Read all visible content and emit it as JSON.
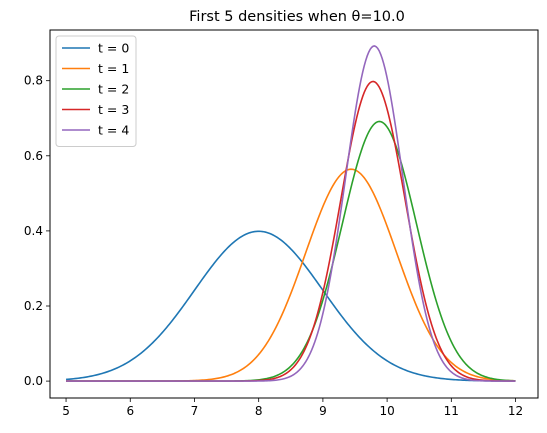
{
  "chart_data": {
    "type": "line",
    "title": "First 5 densities when θ=10.0",
    "xlabel": "",
    "ylabel": "",
    "xlim": [
      4.75,
      12.35
    ],
    "ylim": [
      -0.045,
      0.935
    ],
    "xticks": [
      5,
      6,
      7,
      8,
      9,
      10,
      11,
      12
    ],
    "xtick_labels": [
      "5",
      "6",
      "7",
      "8",
      "9",
      "10",
      "11",
      "12"
    ],
    "yticks": [
      0.0,
      0.2,
      0.4,
      0.6,
      0.8
    ],
    "ytick_labels": [
      "0.0",
      "0.2",
      "0.4",
      "0.6",
      "0.8"
    ],
    "grid": false,
    "legend_position": "top-left",
    "x_domain": [
      5,
      12
    ],
    "series": [
      {
        "name": "t = 0",
        "color": "#1f77b4",
        "distribution": "normal",
        "mean": 8.0,
        "sd": 1.0,
        "peak": 0.399
      },
      {
        "name": "t = 1",
        "color": "#ff7f0e",
        "distribution": "normal",
        "mean": 9.44,
        "sd": 0.707,
        "peak": 0.564
      },
      {
        "name": "t = 2",
        "color": "#2ca02c",
        "distribution": "normal",
        "mean": 9.88,
        "sd": 0.577,
        "peak": 0.691
      },
      {
        "name": "t = 3",
        "color": "#d62728",
        "distribution": "normal",
        "mean": 9.78,
        "sd": 0.5,
        "peak": 0.798
      },
      {
        "name": "t = 4",
        "color": "#9467bd",
        "distribution": "normal",
        "mean": 9.8,
        "sd": 0.447,
        "peak": 0.892
      }
    ]
  }
}
